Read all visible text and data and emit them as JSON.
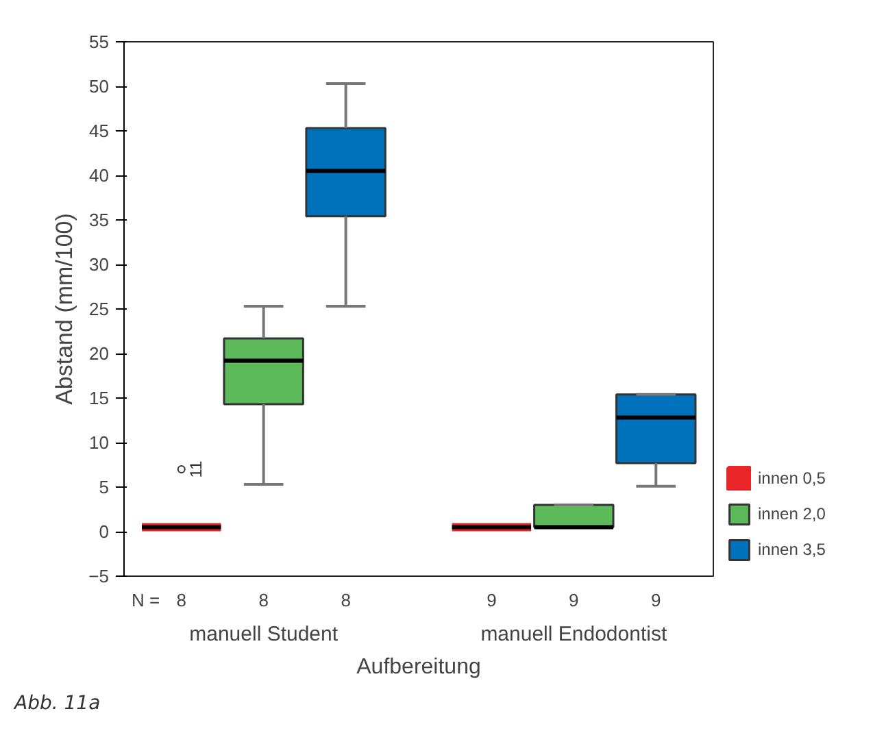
{
  "chart_data": {
    "type": "box",
    "categories": [
      "manuell Student",
      "manuell Endodontist"
    ],
    "xlabel": "Aufbereitung",
    "ylabel": "Abstand (mm/100)",
    "ylim": [
      -5,
      55
    ],
    "yticks": [
      {
        "value": -5,
        "label": "−5"
      },
      0,
      5,
      10,
      15,
      20,
      25,
      30,
      35,
      40,
      45,
      50,
      55
    ],
    "grid": false,
    "legend": "right",
    "series": [
      {
        "name": "innen 0,5",
        "color": "#e8262a",
        "boxes": [
          {
            "low": 0.5,
            "q1": 0.5,
            "median": 0.5,
            "q3": 0.5,
            "high": 0.5,
            "outliers": [
              7
            ]
          },
          {
            "low": 0.5,
            "q1": 0.5,
            "median": 0.5,
            "q3": 0.5,
            "high": 0.5
          }
        ]
      },
      {
        "name": "innen 2,0",
        "color": "#5cba5a",
        "boxes": [
          {
            "low": 5.3,
            "q1": 14.3,
            "median": 19.2,
            "q3": 21.7,
            "high": 25.3
          },
          {
            "low": 0.5,
            "q1": 0.5,
            "median": 0.5,
            "q3": 3,
            "high": 3
          }
        ]
      },
      {
        "name": "innen 3,5",
        "color": "#0072bc",
        "boxes": [
          {
            "low": 25.3,
            "q1": 35.4,
            "median": 40.5,
            "q3": 45.3,
            "high": 50.3
          },
          {
            "low": 5.1,
            "q1": 7.7,
            "median": 12.8,
            "q3": 15.4,
            "high": 15.4
          }
        ]
      }
    ],
    "annotations": [
      "N =",
      "Abb. 11a",
      "8",
      "8",
      "8",
      "9",
      "9",
      "9",
      "11"
    ]
  }
}
